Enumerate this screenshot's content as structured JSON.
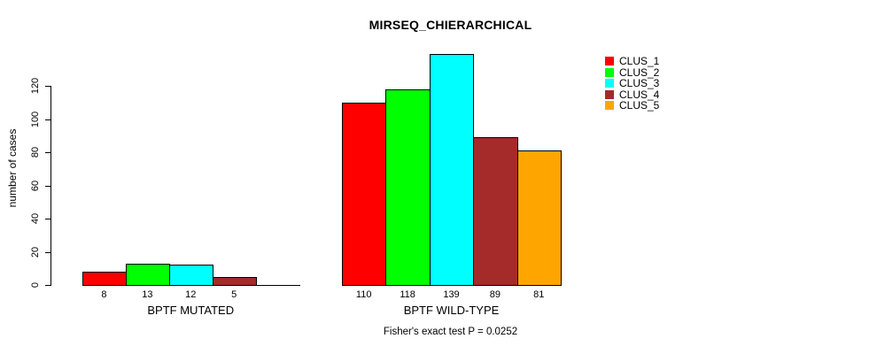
{
  "chart_data": {
    "type": "bar",
    "title": "MIRSEQ_CHIERARCHICAL",
    "ylabel": "number of cases",
    "xlabel": "",
    "ylim": [
      0,
      140
    ],
    "yticks": [
      0,
      20,
      40,
      60,
      80,
      100,
      120
    ],
    "grid": false,
    "legend_position": "top-right",
    "series": [
      {
        "name": "CLUS_1",
        "color": "#FF0000"
      },
      {
        "name": "CLUS_2",
        "color": "#00FF00"
      },
      {
        "name": "CLUS_3",
        "color": "#00FFFF"
      },
      {
        "name": "CLUS_4",
        "color": "#A52A2A"
      },
      {
        "name": "CLUS_5",
        "color": "#FFA500"
      }
    ],
    "categories": [
      "BPTF MUTATED",
      "BPTF WILD-TYPE"
    ],
    "groups": [
      {
        "label": "BPTF MUTATED",
        "values": [
          8,
          13,
          12,
          5,
          0
        ],
        "bar_labels": [
          "8",
          "13",
          "12",
          "5",
          ""
        ]
      },
      {
        "label": "BPTF WILD-TYPE",
        "values": [
          110,
          118,
          139,
          89,
          81
        ],
        "bar_labels": [
          "110",
          "118",
          "139",
          "89",
          "81"
        ]
      }
    ],
    "annotation": "Fisher's exact test P = 0.0252"
  }
}
